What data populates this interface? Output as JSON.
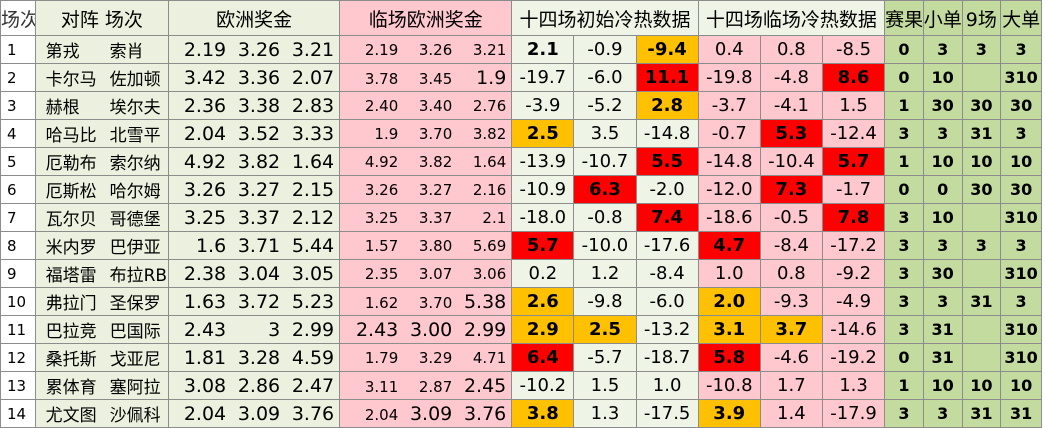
{
  "headers": {
    "idx": "场次",
    "match": "对阵  场次",
    "euro": "欧洲奖金",
    "live_euro": "临场欧洲奖金",
    "init_heat": "十四场初始冷热数据",
    "live_heat": "十四场临场冷热数据",
    "result": "赛果",
    "small": "小单",
    "nine": "9场",
    "big": "大单"
  },
  "rows": [
    {
      "idx": "1",
      "home": "第戎",
      "away": "索肖",
      "euro": [
        "2.19",
        "3.26",
        "3.21"
      ],
      "live": [
        "2.19",
        "3.26",
        "3.21"
      ],
      "init": [
        "2.1",
        "-0.9",
        "-9.4"
      ],
      "heat": [
        "0.4",
        "0.8",
        "-8.5"
      ],
      "result": "0",
      "small": "3",
      "nine": "3",
      "big": "3"
    },
    {
      "idx": "2",
      "home": "卡尔马",
      "away": "佐加顿",
      "euro": [
        "3.42",
        "3.36",
        "2.07"
      ],
      "live": [
        "3.78",
        "3.45",
        "1.9"
      ],
      "init": [
        "-19.7",
        "-6.0",
        "11.1"
      ],
      "heat": [
        "-19.8",
        "-4.8",
        "8.6"
      ],
      "result": "0",
      "small": "10",
      "nine": "",
      "big": "310"
    },
    {
      "idx": "3",
      "home": "赫根",
      "away": "埃尔夫",
      "euro": [
        "2.36",
        "3.38",
        "2.83"
      ],
      "live": [
        "2.40",
        "3.40",
        "2.76"
      ],
      "init": [
        "-3.9",
        "-5.2",
        "2.8"
      ],
      "heat": [
        "-3.7",
        "-4.1",
        "1.5"
      ],
      "result": "1",
      "small": "30",
      "nine": "30",
      "big": "30"
    },
    {
      "idx": "4",
      "home": "哈马比",
      "away": "北雪平",
      "euro": [
        "2.04",
        "3.52",
        "3.33"
      ],
      "live": [
        "1.9",
        "3.70",
        "3.82"
      ],
      "init": [
        "2.5",
        "3.5",
        "-14.8"
      ],
      "heat": [
        "-0.7",
        "5.3",
        "-12.4"
      ],
      "result": "3",
      "small": "3",
      "nine": "31",
      "big": "3"
    },
    {
      "idx": "5",
      "home": "厄勒布",
      "away": "索尔纳",
      "euro": [
        "4.92",
        "3.82",
        "1.64"
      ],
      "live": [
        "4.92",
        "3.82",
        "1.64"
      ],
      "init": [
        "-13.9",
        "-10.7",
        "5.5"
      ],
      "heat": [
        "-14.8",
        "-10.4",
        "5.7"
      ],
      "result": "1",
      "small": "10",
      "nine": "10",
      "big": "10"
    },
    {
      "idx": "6",
      "home": "厄斯松",
      "away": "哈尔姆",
      "euro": [
        "3.26",
        "3.27",
        "2.15"
      ],
      "live": [
        "3.26",
        "3.27",
        "2.16"
      ],
      "init": [
        "-10.9",
        "6.3",
        "-2.0"
      ],
      "heat": [
        "-12.0",
        "7.3",
        "-1.7"
      ],
      "result": "0",
      "small": "0",
      "nine": "30",
      "big": "30"
    },
    {
      "idx": "7",
      "home": "瓦尔贝",
      "away": "哥德堡",
      "euro": [
        "3.25",
        "3.37",
        "2.12"
      ],
      "live": [
        "3.25",
        "3.37",
        "2.1"
      ],
      "init": [
        "-18.0",
        "-0.8",
        "7.4"
      ],
      "heat": [
        "-18.6",
        "-0.5",
        "7.8"
      ],
      "result": "3",
      "small": "10",
      "nine": "",
      "big": "310"
    },
    {
      "idx": "8",
      "home": "米内罗",
      "away": "巴伊亚",
      "euro": [
        "1.6",
        "3.71",
        "5.44"
      ],
      "live": [
        "1.57",
        "3.80",
        "5.69"
      ],
      "init": [
        "5.7",
        "-10.0",
        "-17.6"
      ],
      "heat": [
        "4.7",
        "-8.4",
        "-17.2"
      ],
      "result": "3",
      "small": "3",
      "nine": "3",
      "big": "3"
    },
    {
      "idx": "9",
      "home": "福塔雷",
      "away": "布拉RB",
      "euro": [
        "2.38",
        "3.04",
        "3.05"
      ],
      "live": [
        "2.35",
        "3.07",
        "3.06"
      ],
      "init": [
        "0.2",
        "1.2",
        "-8.4"
      ],
      "heat": [
        "1.0",
        "0.8",
        "-9.2"
      ],
      "result": "3",
      "small": "30",
      "nine": "",
      "big": "310"
    },
    {
      "idx": "10",
      "home": "弗拉门",
      "away": "圣保罗",
      "euro": [
        "1.63",
        "3.72",
        "5.23"
      ],
      "live": [
        "1.62",
        "3.70",
        "5.38"
      ],
      "init": [
        "2.6",
        "-9.8",
        "-6.0"
      ],
      "heat": [
        "2.0",
        "-9.3",
        "-4.9"
      ],
      "result": "3",
      "small": "3",
      "nine": "31",
      "big": "3"
    },
    {
      "idx": "11",
      "home": "巴拉竞",
      "away": "巴国际",
      "euro": [
        "2.43",
        "3",
        "2.99"
      ],
      "live": [
        "2.43",
        "3.00",
        "2.99"
      ],
      "init": [
        "2.9",
        "2.5",
        "-13.2"
      ],
      "heat": [
        "3.1",
        "3.7",
        "-14.6"
      ],
      "result": "3",
      "small": "31",
      "nine": "",
      "big": "310"
    },
    {
      "idx": "12",
      "home": "桑托斯",
      "away": "戈亚尼",
      "euro": [
        "1.81",
        "3.28",
        "4.59"
      ],
      "live": [
        "1.79",
        "3.29",
        "4.71"
      ],
      "init": [
        "6.4",
        "-5.7",
        "-18.7"
      ],
      "heat": [
        "5.8",
        "-4.6",
        "-19.2"
      ],
      "result": "0",
      "small": "31",
      "nine": "",
      "big": "310"
    },
    {
      "idx": "13",
      "home": "累体育",
      "away": "塞阿拉",
      "euro": [
        "3.08",
        "2.86",
        "2.47"
      ],
      "live": [
        "3.11",
        "2.87",
        "2.45"
      ],
      "init": [
        "-10.2",
        "1.5",
        "1.0"
      ],
      "heat": [
        "-10.8",
        "1.7",
        "1.3"
      ],
      "result": "1",
      "small": "10",
      "nine": "10",
      "big": "10"
    },
    {
      "idx": "14",
      "home": "尤文图",
      "away": "沙佩科",
      "euro": [
        "2.04",
        "3.09",
        "3.76"
      ],
      "live": [
        "2.04",
        "3.09",
        "3.76"
      ],
      "init": [
        "3.8",
        "1.3",
        "-17.5"
      ],
      "heat": [
        "3.9",
        "1.4",
        "-17.9"
      ],
      "result": "3",
      "small": "3",
      "nine": "31",
      "big": "31"
    }
  ],
  "colors": {
    "red_highlight": "#ff0000",
    "orange_highlight": "#ffc000",
    "pink": "#ffc7ce",
    "mint": "#ebf1de",
    "green": "#c4dba0"
  }
}
